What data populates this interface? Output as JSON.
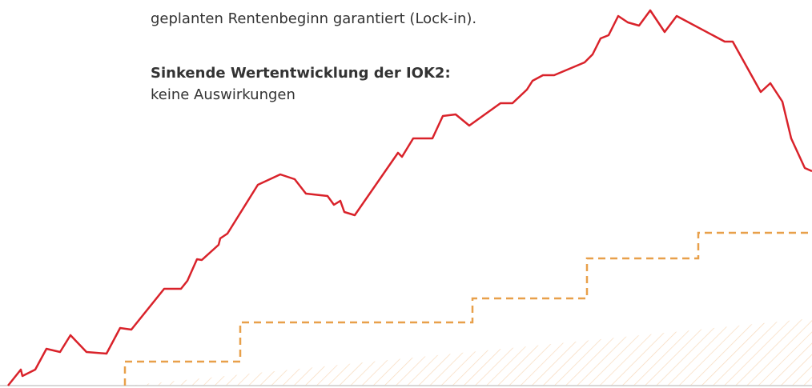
{
  "text": {
    "line1": "geplanten Rentenbeginn garantiert (Lock-in).",
    "heading": "Sinkende Wertentwicklung der IOK2:",
    "body": "keine Auswirkungen"
  }
}
